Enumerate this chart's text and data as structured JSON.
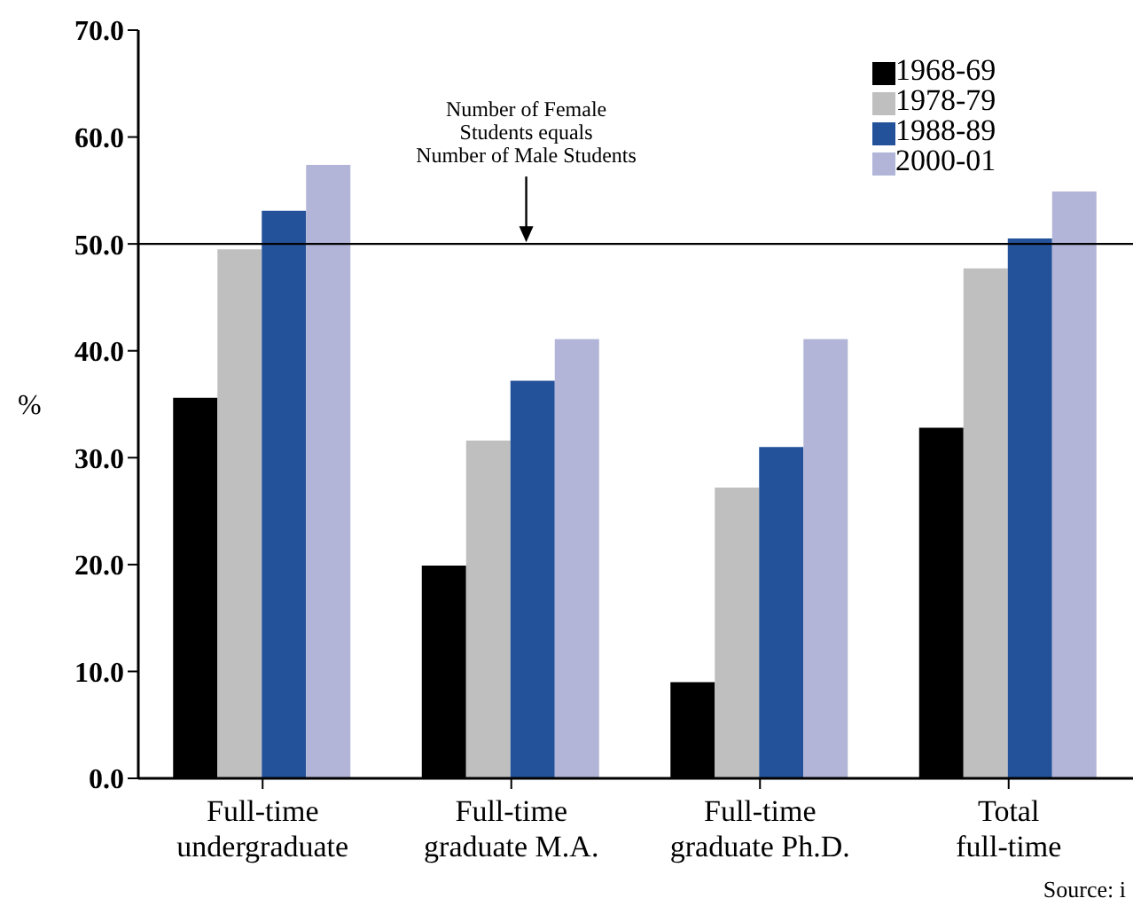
{
  "chart_data": {
    "type": "bar",
    "ylabel": "%",
    "categories": [
      "Full-time\nundergraduate",
      "Full-time\ngraduate M.A.",
      "Full-time\ngraduate Ph.D.",
      "Total\nfull-time"
    ],
    "series": [
      {
        "name": "1968-69",
        "color": "#000000",
        "values": [
          35.6,
          19.9,
          9.0,
          32.8
        ]
      },
      {
        "name": "1978-79",
        "color": "#bfbfbf",
        "values": [
          49.5,
          31.6,
          27.2,
          47.7
        ]
      },
      {
        "name": "1988-89",
        "color": "#23529a",
        "values": [
          53.1,
          37.2,
          31.0,
          50.5
        ]
      },
      {
        "name": "2000-01",
        "color": "#b2b5d7",
        "values": [
          57.4,
          41.1,
          41.1,
          54.9
        ]
      }
    ],
    "ylim": [
      0,
      70
    ],
    "yticks": [
      {
        "value": 0,
        "label": "0.0"
      },
      {
        "value": 10,
        "label": "10.0"
      },
      {
        "value": 20,
        "label": "20.0"
      },
      {
        "value": 30,
        "label": "30.0"
      },
      {
        "value": 40,
        "label": "40.0"
      },
      {
        "value": 50,
        "label": "50.0"
      },
      {
        "value": 60,
        "label": "60.0"
      },
      {
        "value": 70,
        "label": "70.0"
      }
    ],
    "ref_lines": [
      {
        "axis": "y",
        "value": 50,
        "label": "Number of Female\nStudents equals\nNumber of Male Students",
        "color": "#000000"
      }
    ],
    "legend": "top right",
    "grid": false,
    "annotations": [
      "Source: i"
    ]
  }
}
